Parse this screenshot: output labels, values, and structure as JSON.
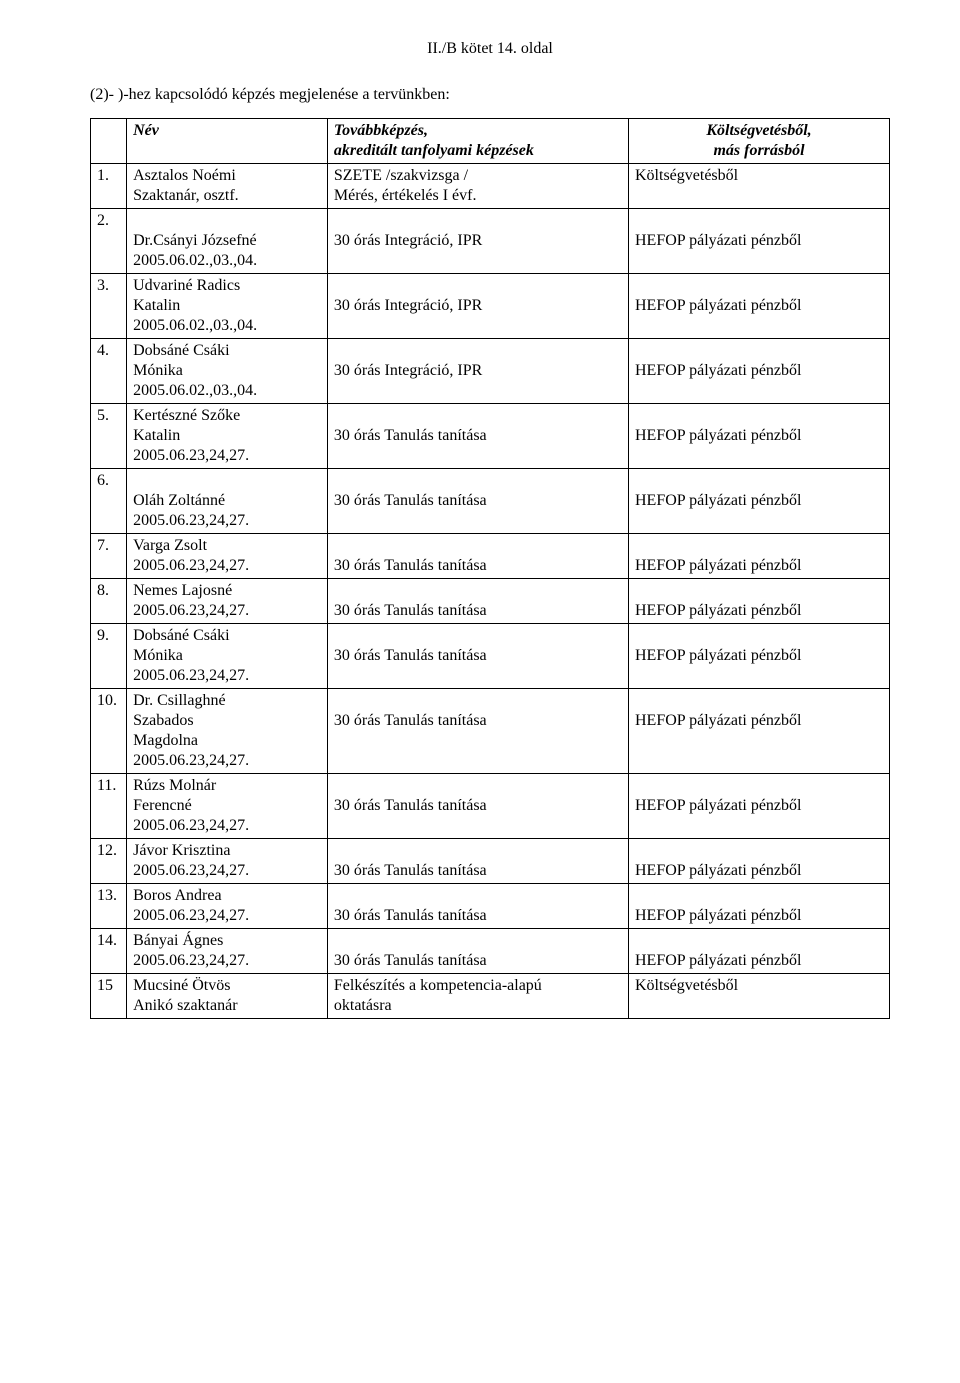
{
  "page_header": "II./B kötet 14. oldal",
  "intro": "(2)- )-hez kapcsolódó képzés megjelenése a tervünkben:",
  "headers": {
    "name": "Név",
    "course_l1": "Továbbképzés,",
    "course_l2": "akreditált tanfolyami képzések",
    "fund_l1": "Költségvetésből,",
    "fund_l2": "más forrásból"
  },
  "rows": [
    {
      "num": "1.",
      "name_lines": [
        "Asztalos Noémi",
        "Szaktanár, osztf."
      ],
      "course_lines": [
        "SZETE /szakvizsga /",
        "Mérés, értékelés I évf."
      ],
      "fund": "Költségvetésből"
    },
    {
      "num": "2.",
      "name_lines": [
        "",
        "Dr.Csányi Józsefné",
        "2005.06.02.,03.,04."
      ],
      "course_lines": [
        "",
        "30 órás Integráció, IPR"
      ],
      "fund_lines": [
        "",
        "HEFOP pályázati pénzből"
      ]
    },
    {
      "num": "3.",
      "name_lines": [
        "Udvariné Radics",
        "Katalin",
        "2005.06.02.,03.,04."
      ],
      "course_lines": [
        "",
        "30 órás Integráció, IPR"
      ],
      "fund_lines": [
        "",
        "HEFOP pályázati pénzből"
      ]
    },
    {
      "num": "4.",
      "name_lines": [
        "Dobsáné Csáki",
        "Mónika",
        "2005.06.02.,03.,04."
      ],
      "course_lines": [
        "",
        "30 órás Integráció, IPR"
      ],
      "fund_lines": [
        "",
        "HEFOP pályázati pénzből"
      ]
    },
    {
      "num": "5.",
      "name_lines": [
        "Kertészné Szőke",
        "Katalin",
        "2005.06.23,24,27."
      ],
      "course_lines": [
        "",
        "30 órás Tanulás tanítása"
      ],
      "fund_lines": [
        "",
        "HEFOP pályázati pénzből"
      ]
    },
    {
      "num": "6.",
      "name_lines": [
        "",
        "Oláh Zoltánné",
        "2005.06.23,24,27."
      ],
      "course_lines": [
        "",
        "30 órás Tanulás tanítása"
      ],
      "fund_lines": [
        "",
        "HEFOP pályázati pénzből"
      ]
    },
    {
      "num": "7.",
      "name_lines": [
        "Varga Zsolt",
        "2005.06.23,24,27."
      ],
      "course_lines": [
        "",
        "30 órás Tanulás tanítása"
      ],
      "fund_lines": [
        "",
        "HEFOP pályázati pénzből"
      ]
    },
    {
      "sep": true
    },
    {
      "num": "8.",
      "name_lines": [
        "Nemes Lajosné",
        "2005.06.23,24,27."
      ],
      "course_lines": [
        "",
        "30 órás Tanulás tanítása"
      ],
      "fund_lines": [
        "",
        "HEFOP pályázati pénzből"
      ]
    },
    {
      "sep": true
    },
    {
      "num": "9.",
      "name_lines": [
        "Dobsáné Csáki",
        "Mónika",
        "2005.06.23,24,27."
      ],
      "course_lines": [
        "",
        "30 órás Tanulás tanítása"
      ],
      "fund_lines": [
        "",
        "HEFOP pályázati pénzből"
      ]
    },
    {
      "num": "10.",
      "name_lines": [
        "Dr. Csillaghné",
        "Szabados",
        "Magdolna",
        "2005.06.23,24,27."
      ],
      "course_lines": [
        "",
        "30 órás Tanulás tanítása"
      ],
      "fund_lines": [
        "",
        "HEFOP pályázati pénzből"
      ]
    },
    {
      "num": "11.",
      "name_lines": [
        "Rúzs Molnár",
        "Ferencné",
        "2005.06.23,24,27."
      ],
      "course_lines": [
        "",
        "30 órás Tanulás tanítása"
      ],
      "fund_lines": [
        "",
        "HEFOP pályázati pénzből"
      ]
    },
    {
      "num": "12.",
      "name_lines": [
        "Jávor Krisztina",
        "2005.06.23,24,27."
      ],
      "course_lines": [
        "",
        "30 órás Tanulás tanítása"
      ],
      "fund_lines": [
        "",
        "HEFOP pályázati pénzből"
      ]
    },
    {
      "sep": true
    },
    {
      "num": "13.",
      "name_lines": [
        "Boros Andrea",
        "2005.06.23,24,27."
      ],
      "course_lines": [
        "",
        "30 órás Tanulás tanítása"
      ],
      "fund_lines": [
        "",
        "HEFOP pályázati pénzből"
      ]
    },
    {
      "sep": true
    },
    {
      "num": "14.",
      "name_lines": [
        "Bányai Ágnes",
        "2005.06.23,24,27."
      ],
      "course_lines": [
        "",
        "30 órás Tanulás tanítása"
      ],
      "fund_lines": [
        "",
        "HEFOP pályázati pénzből"
      ]
    },
    {
      "sep": true
    },
    {
      "num": "15",
      "name_lines": [
        "Mucsiné Ötvös",
        "Anikó szaktanár"
      ],
      "course_lines": [
        "Felkészítés a kompetencia-alapú",
        "oktatásra"
      ],
      "fund": "Költségvetésből"
    }
  ]
}
